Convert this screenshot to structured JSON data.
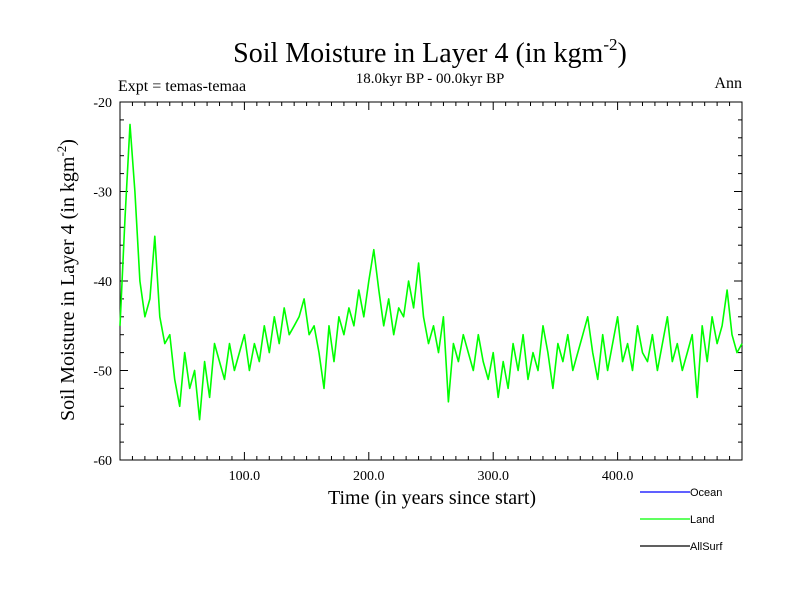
{
  "chart_data": {
    "type": "line",
    "title": "Soil Moisture in Layer 4 (in kgm",
    "title_sup": "-2",
    "title_close": ")",
    "subtitle": "18.0kyr BP - 00.0kyr BP",
    "experiment_label": "Expt = temas-temaa",
    "season_label": "Ann",
    "xlabel": "Time (in years since start)",
    "ylabel": "Soil Moisture in Layer 4 (in kgm",
    "ylabel_sup": "-2",
    "ylabel_close": ")",
    "xlim": [
      0,
      500
    ],
    "ylim": [
      -60,
      -20
    ],
    "x_ticks": [
      100,
      200,
      300,
      400
    ],
    "x_tick_labels": [
      "100.0",
      "200.0",
      "300.0",
      "400.0"
    ],
    "y_ticks": [
      -60,
      -50,
      -40,
      -30,
      -20
    ],
    "y_tick_labels": [
      "-60",
      "-50",
      "-40",
      "-30",
      "-20"
    ],
    "legend": [
      {
        "name": "Ocean",
        "color": "#0000ff"
      },
      {
        "name": "Land",
        "color": "#00ff00"
      },
      {
        "name": "AllSurf",
        "color": "#000000"
      }
    ],
    "series": [
      {
        "name": "Land",
        "color": "#00ff00",
        "x": [
          0,
          4,
          8,
          12,
          16,
          20,
          24,
          28,
          32,
          36,
          40,
          44,
          48,
          52,
          56,
          60,
          64,
          68,
          72,
          76,
          80,
          84,
          88,
          92,
          96,
          100,
          104,
          108,
          112,
          116,
          120,
          124,
          128,
          132,
          136,
          140,
          144,
          148,
          152,
          156,
          160,
          164,
          168,
          172,
          176,
          180,
          184,
          188,
          192,
          196,
          200,
          204,
          208,
          212,
          216,
          220,
          224,
          228,
          232,
          236,
          240,
          244,
          248,
          252,
          256,
          260,
          264,
          268,
          272,
          276,
          280,
          284,
          288,
          292,
          296,
          300,
          304,
          308,
          312,
          316,
          320,
          324,
          328,
          332,
          336,
          340,
          344,
          348,
          352,
          356,
          360,
          364,
          368,
          372,
          376,
          380,
          384,
          388,
          392,
          396,
          400,
          404,
          408,
          412,
          416,
          420,
          424,
          428,
          432,
          436,
          440,
          444,
          448,
          452,
          456,
          460,
          464,
          468,
          472,
          476,
          480,
          484,
          488,
          492,
          496,
          500
        ],
        "values": [
          -45,
          -33,
          -22.5,
          -30,
          -40,
          -44,
          -42,
          -35,
          -44,
          -47,
          -46,
          -51,
          -54,
          -48,
          -52,
          -50,
          -55.5,
          -49,
          -53,
          -47,
          -49,
          -51,
          -47,
          -50,
          -48,
          -46,
          -50,
          -47,
          -49,
          -45,
          -48,
          -44,
          -47,
          -43,
          -46,
          -45,
          -44,
          -42,
          -46,
          -45,
          -48,
          -52,
          -45,
          -49,
          -44,
          -46,
          -43,
          -45,
          -41,
          -44,
          -40,
          -36.5,
          -41,
          -45,
          -42,
          -46,
          -43,
          -44,
          -40,
          -43,
          -38,
          -44,
          -47,
          -45,
          -48,
          -44,
          -53.5,
          -47,
          -49,
          -46,
          -48,
          -50,
          -46,
          -49,
          -51,
          -48,
          -53,
          -49,
          -52,
          -47,
          -50,
          -46,
          -51,
          -48,
          -50,
          -45,
          -48,
          -52,
          -47,
          -49,
          -46,
          -50,
          -48,
          -46,
          -44,
          -48,
          -51,
          -46,
          -50,
          -47,
          -44,
          -49,
          -47,
          -50,
          -45,
          -48,
          -49,
          -46,
          -50,
          -47,
          -44,
          -49,
          -47,
          -50,
          -48,
          -46,
          -53,
          -45,
          -49,
          -44,
          -47,
          -45,
          -41,
          -46,
          -48,
          -47
        ]
      }
    ]
  }
}
